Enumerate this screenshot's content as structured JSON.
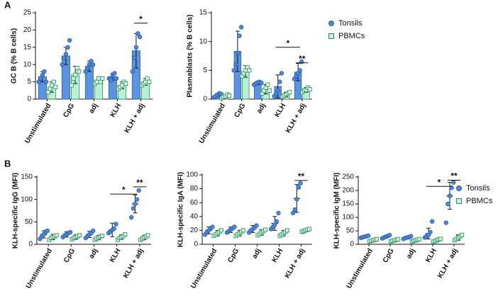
{
  "panels": [
    "A",
    "B"
  ],
  "chart_data": [
    {
      "type": "bar",
      "ylabel": "GC B (% B cells)",
      "categories": [
        "Unstimulated",
        "CpG",
        "adj",
        "KLH",
        "KLH + adj"
      ],
      "ylim": [
        0,
        25
      ],
      "yticks": [
        0,
        5,
        10,
        15,
        20,
        25
      ],
      "series": [
        {
          "name": "Tonsils",
          "color": "#5b93de",
          "values": [
            6.5,
            12.5,
            9.5,
            6.5,
            14
          ],
          "errors": [
            1.5,
            2.5,
            1.5,
            1,
            5
          ],
          "points": [
            [
              5,
              6,
              7,
              8,
              5
            ],
            [
              10,
              12,
              13,
              15,
              17
            ],
            [
              8,
              9,
              10,
              11,
              10
            ],
            [
              6,
              5.5,
              7,
              7.5,
              6
            ],
            [
              8,
              12,
              15,
              19,
              18
            ]
          ]
        },
        {
          "name": "PBMCs",
          "color": "#b8f0d6",
          "values": [
            3.5,
            7,
            5.5,
            4,
            5
          ],
          "errors": [
            1.5,
            2.5,
            1,
            1,
            1
          ],
          "points": [
            [
              2,
              3,
              4,
              5,
              3.5
            ],
            [
              4,
              6,
              7,
              9,
              8
            ],
            [
              4.5,
              5,
              6,
              5,
              6
            ],
            [
              3,
              3.5,
              4,
              5,
              4.5
            ],
            [
              4,
              4.5,
              5,
              6,
              5
            ]
          ]
        }
      ],
      "annotations": [
        {
          "text": "*"
        }
      ]
    },
    {
      "type": "bar",
      "ylabel": "Plasmablasts (% B cells)",
      "categories": [
        "Unstimulated",
        "CpG",
        "adj",
        "KLH",
        "KLH + adj"
      ],
      "ylim": [
        0,
        15
      ],
      "yticks": [
        0,
        5,
        10,
        15
      ],
      "series": [
        {
          "name": "Tonsils",
          "color": "#5b93de",
          "values": [
            0.7,
            8.3,
            2.8,
            2.2,
            4.7
          ],
          "errors": [
            0.3,
            3.5,
            0.3,
            2,
            1.5
          ],
          "points": [
            [
              0.3,
              0.5,
              0.7,
              1,
              0.9
            ],
            [
              5,
              6,
              8,
              11,
              12.5
            ],
            [
              2.5,
              2.7,
              2.9,
              3,
              2.8
            ],
            [
              0.5,
              1,
              1.5,
              3,
              4.5
            ],
            [
              3.5,
              4,
              4.5,
              5,
              6.5
            ]
          ]
        },
        {
          "name": "PBMCs",
          "color": "#b8f0d6",
          "values": [
            0.5,
            4.8,
            1.7,
            0.8,
            1.6
          ],
          "errors": [
            0.3,
            1,
            0.8,
            0.4,
            0.4
          ],
          "points": [
            [
              0.2,
              0.4,
              0.5,
              0.8,
              0.6
            ],
            [
              4,
              4.5,
              5,
              5.5,
              5
            ],
            [
              1,
              1.5,
              2,
              2.5,
              1.5
            ],
            [
              0.4,
              0.6,
              0.8,
              1,
              1.2
            ],
            [
              1.2,
              1.5,
              1.6,
              2,
              1.7
            ]
          ]
        }
      ],
      "annotations": [
        {
          "text": "*"
        },
        {
          "text": "**"
        }
      ]
    },
    {
      "type": "dot",
      "ylabel": "KLH-specific IgG (MFI)",
      "categories": [
        "Unstimulated",
        "CpG",
        "adj",
        "KLH",
        "KLH + adj"
      ],
      "ylim": [
        0,
        150
      ],
      "yticks": [
        0,
        50,
        100,
        150
      ],
      "series": [
        {
          "name": "Tonsils",
          "color": "#4f86d6",
          "values": [
            22,
            22,
            22,
            32,
            90
          ],
          "errors": [
            8,
            6,
            7,
            15,
            20
          ],
          "points": [
            [
              12,
              18,
              22,
              28,
              30
            ],
            [
              16,
              20,
              22,
              25,
              27
            ],
            [
              14,
              18,
              22,
              26,
              30
            ],
            [
              25,
              28,
              32,
              35,
              45
            ],
            [
              60,
              80,
              90,
              100,
              120
            ]
          ]
        },
        {
          "name": "PBMCs",
          "color": "#c4f2dc",
          "values": [
            16,
            16,
            15,
            16,
            15
          ],
          "errors": [
            6,
            5,
            5,
            5,
            5
          ],
          "points": [
            [
              10,
              14,
              16,
              18,
              20
            ],
            [
              11,
              14,
              16,
              18,
              20
            ],
            [
              10,
              13,
              15,
              17,
              19
            ],
            [
              10,
              14,
              16,
              18,
              22
            ],
            [
              10,
              13,
              15,
              17,
              20
            ]
          ]
        }
      ],
      "annotations": [
        {
          "text": "*"
        },
        {
          "text": "**"
        }
      ]
    },
    {
      "type": "dot",
      "ylabel": "KLH-specific IgA (MFI)",
      "categories": [
        "Unstimulated",
        "CpG",
        "adj",
        "KLH",
        "KLH + adj"
      ],
      "ylim": [
        0,
        100
      ],
      "yticks": [
        0,
        20,
        40,
        60,
        80,
        100
      ],
      "series": [
        {
          "name": "Tonsils",
          "color": "#4f86d6",
          "values": [
            20,
            21,
            22,
            30,
            66
          ],
          "errors": [
            5,
            4,
            5,
            10,
            20
          ],
          "points": [
            [
              14,
              18,
              20,
              23,
              25
            ],
            [
              17,
              19,
              21,
              23,
              25
            ],
            [
              17,
              20,
              22,
              24,
              27
            ],
            [
              22,
              25,
              28,
              33,
              45
            ],
            [
              45,
              50,
              65,
              82,
              88
            ]
          ]
        },
        {
          "name": "PBMCs",
          "color": "#c4f2dc",
          "values": [
            16,
            16,
            17,
            16,
            20
          ],
          "errors": [
            4,
            4,
            4,
            4,
            2
          ],
          "points": [
            [
              12,
              14,
              16,
              18,
              20
            ],
            [
              12,
              14,
              16,
              18,
              20
            ],
            [
              13,
              15,
              17,
              19,
              21
            ],
            [
              12,
              14,
              16,
              18,
              20
            ],
            [
              18,
              19,
              20,
              21,
              22
            ]
          ]
        }
      ],
      "annotations": [
        {
          "text": "**"
        }
      ]
    },
    {
      "type": "dot",
      "ylabel": "KLH-specific IgM (MFI)",
      "categories": [
        "Unstimulated",
        "CpG",
        "adj",
        "KLH",
        "KLH + adj"
      ],
      "ylim": [
        0,
        250
      ],
      "yticks": [
        0,
        50,
        100,
        150,
        200,
        250
      ],
      "series": [
        {
          "name": "Tonsils",
          "color": "#4f86d6",
          "values": [
            28,
            28,
            25,
            40,
            180
          ],
          "errors": [
            4,
            5,
            4,
            20,
            50
          ],
          "points": [
            [
              24,
              26,
              28,
              30,
              32
            ],
            [
              22,
              25,
              28,
              31,
              34
            ],
            [
              20,
              23,
              25,
              27,
              30
            ],
            [
              25,
              30,
              35,
              45,
              85
            ],
            [
              80,
              150,
              180,
              210,
              230
            ]
          ]
        },
        {
          "name": "PBMCs",
          "color": "#c4f2dc",
          "values": [
            15,
            15,
            15,
            15,
            25
          ],
          "errors": [
            3,
            3,
            3,
            5,
            10
          ],
          "points": [
            [
              11,
              13,
              15,
              17,
              19
            ],
            [
              11,
              13,
              15,
              17,
              19
            ],
            [
              11,
              13,
              15,
              17,
              19
            ],
            [
              10,
              12,
              15,
              18,
              20
            ],
            [
              15,
              20,
              25,
              30,
              35
            ]
          ]
        }
      ],
      "annotations": [
        {
          "text": "*"
        },
        {
          "text": "**"
        }
      ]
    }
  ]
}
